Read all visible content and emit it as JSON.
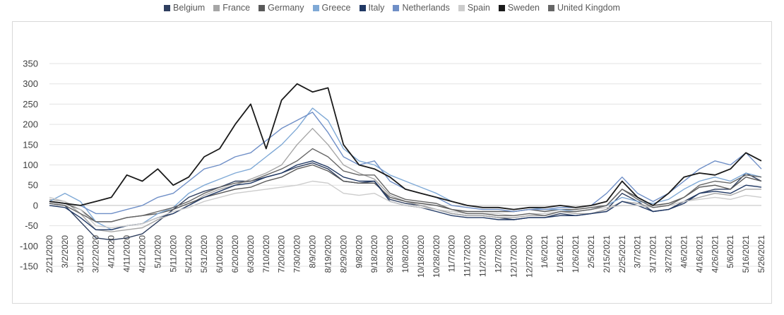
{
  "chart_data": {
    "type": "line",
    "title": "",
    "xlabel": "",
    "ylabel": "",
    "ylim": [
      -150,
      350
    ],
    "y_ticks": [
      -150,
      -100,
      -50,
      0,
      50,
      100,
      150,
      200,
      250,
      300,
      350
    ],
    "x_tick_labels": [
      "2/21/2020",
      "3/2/2020",
      "3/12/2020",
      "3/22/2020",
      "4/1/2020",
      "4/11/2020",
      "4/21/2020",
      "5/1/2020",
      "5/11/2020",
      "5/21/2020",
      "5/31/2020",
      "6/10/2020",
      "6/20/2020",
      "6/30/2020",
      "7/10/2020",
      "7/20/2020",
      "7/30/2020",
      "8/9/2020",
      "8/19/2020",
      "8/29/2020",
      "9/8/2020",
      "9/18/2020",
      "9/28/2020",
      "10/8/2020",
      "10/18/2020",
      "10/28/2020",
      "11/7/2020",
      "11/17/2020",
      "11/27/2020",
      "12/7/2020",
      "12/17/2020",
      "12/27/2020",
      "1/6/2021",
      "1/16/2021",
      "1/26/2021",
      "2/5/2021",
      "2/15/2021",
      "2/25/2021",
      "3/7/2021",
      "3/17/2021",
      "3/27/2021",
      "4/6/2021",
      "4/16/2021",
      "4/26/2021",
      "5/6/2021",
      "5/16/2021",
      "5/26/2021"
    ],
    "legend_position": "top",
    "grid": "horizontal",
    "series": [
      {
        "name": "Belgium",
        "color": "#2f3f5f",
        "values": [
          5,
          0,
          -40,
          -80,
          -85,
          -80,
          -70,
          -40,
          -10,
          20,
          35,
          45,
          60,
          60,
          70,
          80,
          95,
          105,
          90,
          60,
          55,
          60,
          15,
          5,
          0,
          -10,
          -20,
          -25,
          -25,
          -30,
          -35,
          -30,
          -30,
          -20,
          -25,
          -20,
          -10,
          30,
          10,
          -15,
          -10,
          10,
          30,
          40,
          40,
          80,
          60
        ]
      },
      {
        "name": "France",
        "color": "#a6a6a6",
        "values": [
          15,
          10,
          -20,
          -60,
          -65,
          -60,
          -55,
          -35,
          -20,
          0,
          25,
          40,
          50,
          65,
          80,
          100,
          150,
          190,
          150,
          100,
          80,
          65,
          25,
          10,
          0,
          -10,
          -20,
          -25,
          -25,
          -30,
          -30,
          -25,
          -25,
          -15,
          -20,
          -20,
          -10,
          10,
          5,
          -5,
          0,
          10,
          20,
          30,
          25,
          40,
          40
        ]
      },
      {
        "name": "Germany",
        "color": "#595959",
        "values": [
          10,
          5,
          -10,
          -40,
          -40,
          -30,
          -25,
          -20,
          -10,
          5,
          20,
          30,
          40,
          45,
          60,
          70,
          90,
          100,
          85,
          60,
          55,
          55,
          20,
          10,
          5,
          0,
          -10,
          -15,
          -15,
          -15,
          -15,
          -10,
          -15,
          -10,
          -10,
          -5,
          0,
          40,
          20,
          0,
          5,
          20,
          45,
          50,
          40,
          70,
          60
        ]
      },
      {
        "name": "Greece",
        "color": "#7fa9d6",
        "values": [
          10,
          30,
          10,
          -40,
          -60,
          -50,
          -45,
          -20,
          -5,
          30,
          50,
          65,
          80,
          90,
          120,
          150,
          190,
          240,
          210,
          140,
          110,
          100,
          75,
          60,
          45,
          30,
          10,
          0,
          -5,
          -5,
          -10,
          -5,
          -10,
          -10,
          -15,
          -10,
          0,
          20,
          10,
          5,
          15,
          40,
          60,
          70,
          60,
          80,
          70
        ]
      },
      {
        "name": "Italy",
        "color": "#203864",
        "values": [
          0,
          -5,
          -30,
          -60,
          -60,
          -50,
          -45,
          -30,
          -20,
          0,
          20,
          35,
          50,
          55,
          70,
          80,
          100,
          110,
          95,
          70,
          60,
          60,
          10,
          0,
          -5,
          -15,
          -25,
          -30,
          -30,
          -35,
          -35,
          -30,
          -30,
          -25,
          -25,
          -20,
          -15,
          10,
          0,
          -15,
          -10,
          5,
          30,
          35,
          30,
          50,
          45
        ]
      },
      {
        "name": "Netherlands",
        "color": "#6f8fc7",
        "values": [
          10,
          5,
          0,
          -20,
          -20,
          -10,
          0,
          20,
          30,
          60,
          90,
          100,
          120,
          130,
          160,
          190,
          210,
          230,
          180,
          120,
          100,
          110,
          60,
          40,
          30,
          20,
          0,
          -5,
          -10,
          -10,
          -15,
          -10,
          -10,
          -5,
          -5,
          0,
          30,
          70,
          30,
          10,
          30,
          60,
          90,
          110,
          100,
          130,
          90
        ]
      },
      {
        "name": "Spain",
        "color": "#cccccc",
        "values": [
          20,
          10,
          -10,
          -50,
          -55,
          -50,
          -45,
          -30,
          -15,
          -5,
          10,
          20,
          30,
          35,
          40,
          45,
          50,
          60,
          55,
          30,
          25,
          30,
          10,
          0,
          -5,
          -10,
          -15,
          -20,
          -20,
          -20,
          -25,
          -20,
          -20,
          -15,
          -15,
          -10,
          -5,
          0,
          0,
          -5,
          0,
          10,
          15,
          20,
          15,
          25,
          20
        ]
      },
      {
        "name": "Sweden",
        "color": "#1a1a1a",
        "values": [
          10,
          5,
          0,
          10,
          20,
          75,
          60,
          90,
          50,
          70,
          120,
          140,
          200,
          250,
          140,
          260,
          300,
          280,
          290,
          150,
          100,
          90,
          70,
          40,
          30,
          20,
          10,
          0,
          -5,
          -5,
          -10,
          -5,
          -5,
          0,
          -5,
          0,
          10,
          60,
          20,
          0,
          30,
          70,
          80,
          75,
          90,
          130,
          110
        ]
      },
      {
        "name": "United Kingdom",
        "color": "#666666",
        "values": [
          5,
          0,
          -20,
          -40,
          -40,
          -30,
          -25,
          -15,
          -5,
          10,
          30,
          45,
          55,
          60,
          75,
          90,
          110,
          140,
          120,
          85,
          75,
          75,
          30,
          15,
          10,
          5,
          -10,
          -20,
          -20,
          -25,
          -25,
          -20,
          -25,
          -15,
          -15,
          -10,
          0,
          40,
          15,
          -5,
          0,
          20,
          50,
          60,
          55,
          75,
          70
        ]
      }
    ]
  }
}
